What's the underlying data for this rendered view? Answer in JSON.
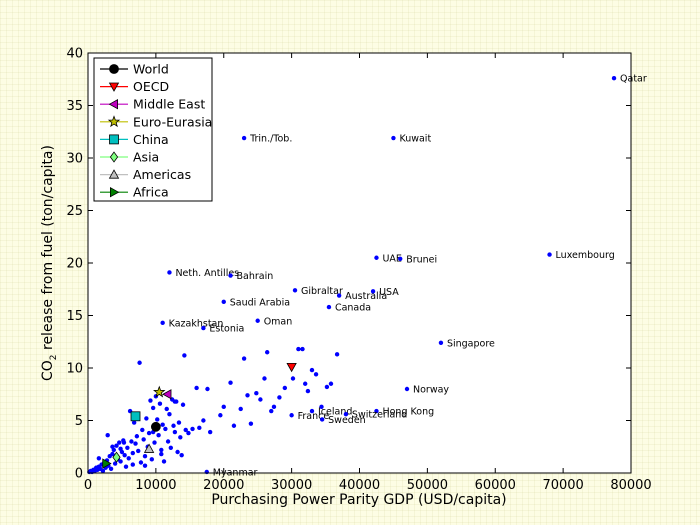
{
  "chart_data": {
    "type": "scatter",
    "title": "",
    "xlabel": "Purchasing Power Parity GDP (USD/capita)",
    "ylabel_main": "CO",
    "ylabel_sub": "2",
    "ylabel_rest": " release from fuel (ton/capita)",
    "xlim": [
      0,
      80000
    ],
    "ylim": [
      0,
      40
    ],
    "xticks": [
      0,
      10000,
      20000,
      30000,
      40000,
      50000,
      60000,
      70000,
      80000
    ],
    "yticks": [
      0,
      5,
      10,
      15,
      20,
      25,
      30,
      35,
      40
    ],
    "grid": false,
    "legend_position": "top-left",
    "colors": {
      "countries": "#0000ff",
      "World": "#000000",
      "OECD": "#ff0000",
      "Middle East": "#bf00bf",
      "Euro-Eurasia": "#bfbf00",
      "China": "#00bfbf",
      "Asia": "#7fff7f",
      "Americas": "#c0c0c0",
      "Africa": "#008000"
    },
    "series": [
      {
        "name": "World",
        "marker": "circle",
        "x": 10000,
        "y": 4.4
      },
      {
        "name": "OECD",
        "marker": "triangle-down",
        "x": 30000,
        "y": 10.1
      },
      {
        "name": "Middle East",
        "marker": "triangle-left",
        "x": 11700,
        "y": 7.5
      },
      {
        "name": "Euro-Eurasia",
        "marker": "star",
        "x": 10500,
        "y": 7.7
      },
      {
        "name": "China",
        "marker": "square",
        "x": 7000,
        "y": 5.4
      },
      {
        "name": "Asia",
        "marker": "diamond",
        "x": 4200,
        "y": 1.5
      },
      {
        "name": "Americas",
        "marker": "triangle-up",
        "x": 9000,
        "y": 2.3
      },
      {
        "name": "Africa",
        "marker": "triangle-right",
        "x": 2700,
        "y": 0.9
      }
    ],
    "labeled_points": [
      {
        "label": "Qatar",
        "x": 77500,
        "y": 37.6
      },
      {
        "label": "Trin./Tob.",
        "x": 23000,
        "y": 31.9
      },
      {
        "label": "Kuwait",
        "x": 45000,
        "y": 31.9
      },
      {
        "label": "Luxembourg",
        "x": 68000,
        "y": 20.8
      },
      {
        "label": "UAE",
        "x": 42500,
        "y": 20.5
      },
      {
        "label": "Brunei",
        "x": 46000,
        "y": 20.4
      },
      {
        "label": "Neth. Antilles",
        "x": 12000,
        "y": 19.1
      },
      {
        "label": "Bahrain",
        "x": 21000,
        "y": 18.8
      },
      {
        "label": "Gibraltar",
        "x": 30500,
        "y": 17.4
      },
      {
        "label": "Australia",
        "x": 37000,
        "y": 16.9
      },
      {
        "label": "USA",
        "x": 42000,
        "y": 17.3
      },
      {
        "label": "Saudi Arabia",
        "x": 20000,
        "y": 16.3
      },
      {
        "label": "Canada",
        "x": 35500,
        "y": 15.8
      },
      {
        "label": "Oman",
        "x": 25000,
        "y": 14.5
      },
      {
        "label": "Kazakhstan",
        "x": 11000,
        "y": 14.3
      },
      {
        "label": "Estonia",
        "x": 17000,
        "y": 13.8
      },
      {
        "label": "Singapore",
        "x": 52000,
        "y": 12.4
      },
      {
        "label": "Norway",
        "x": 47000,
        "y": 8.0
      },
      {
        "label": "Hong Kong",
        "x": 42500,
        "y": 5.9
      },
      {
        "label": "Iceland",
        "x": 33000,
        "y": 5.9
      },
      {
        "label": "Switzerland",
        "x": 38000,
        "y": 5.6
      },
      {
        "label": "France",
        "x": 30000,
        "y": 5.5
      },
      {
        "label": "Sweden",
        "x": 34500,
        "y": 5.1
      },
      {
        "label": "Myanmar",
        "x": 17500,
        "y": 0.1
      }
    ],
    "points": [
      [
        200,
        0.1
      ],
      [
        400,
        0.2
      ],
      [
        600,
        0.1
      ],
      [
        800,
        0.3
      ],
      [
        1000,
        0.2
      ],
      [
        1200,
        0.5
      ],
      [
        1400,
        0.3
      ],
      [
        1600,
        0.6
      ],
      [
        1800,
        0.4
      ],
      [
        2000,
        0.8
      ],
      [
        2200,
        0.2
      ],
      [
        2400,
        1.0
      ],
      [
        2600,
        0.5
      ],
      [
        2800,
        1.2
      ],
      [
        3000,
        0.7
      ],
      [
        3200,
        1.6
      ],
      [
        3400,
        0.4
      ],
      [
        3600,
        1.8
      ],
      [
        3800,
        2.2
      ],
      [
        4000,
        0.9
      ],
      [
        4200,
        2.6
      ],
      [
        4400,
        1.3
      ],
      [
        4600,
        2.9
      ],
      [
        4800,
        1.1
      ],
      [
        5000,
        2.0
      ],
      [
        5200,
        3.1
      ],
      [
        5400,
        1.7
      ],
      [
        5600,
        0.6
      ],
      [
        5800,
        2.4
      ],
      [
        6000,
        1.4
      ],
      [
        6200,
        5.9
      ],
      [
        6400,
        3.0
      ],
      [
        6600,
        1.9
      ],
      [
        6800,
        4.8
      ],
      [
        7000,
        2.8
      ],
      [
        7200,
        3.5
      ],
      [
        7400,
        2.1
      ],
      [
        7600,
        10.5
      ],
      [
        7800,
        1.0
      ],
      [
        8000,
        4.1
      ],
      [
        8200,
        3.2
      ],
      [
        8400,
        1.6
      ],
      [
        8600,
        5.2
      ],
      [
        8800,
        2.5
      ],
      [
        9000,
        3.8
      ],
      [
        9200,
        6.9
      ],
      [
        9400,
        1.3
      ],
      [
        9600,
        6.2
      ],
      [
        9800,
        2.9
      ],
      [
        10000,
        7.3
      ],
      [
        10200,
        5.1
      ],
      [
        10400,
        3.6
      ],
      [
        10600,
        6.6
      ],
      [
        10800,
        2.2
      ],
      [
        11000,
        4.6
      ],
      [
        11200,
        1.1
      ],
      [
        11400,
        4.2
      ],
      [
        11600,
        6.1
      ],
      [
        11800,
        3.0
      ],
      [
        12000,
        5.6
      ],
      [
        12200,
        2.4
      ],
      [
        12400,
        7.0
      ],
      [
        12600,
        4.5
      ],
      [
        12800,
        3.9
      ],
      [
        13000,
        6.8
      ],
      [
        13200,
        2.0
      ],
      [
        13400,
        4.8
      ],
      [
        13600,
        3.4
      ],
      [
        13800,
        1.7
      ],
      [
        14000,
        6.5
      ],
      [
        14200,
        11.2
      ],
      [
        14400,
        4.1
      ],
      [
        14800,
        3.8
      ],
      [
        15400,
        4.2
      ],
      [
        16000,
        8.1
      ],
      [
        16400,
        4.3
      ],
      [
        17000,
        5.0
      ],
      [
        17600,
        8.0
      ],
      [
        18000,
        3.9
      ],
      [
        19500,
        5.5
      ],
      [
        20000,
        6.3
      ],
      [
        21000,
        8.6
      ],
      [
        21500,
        4.5
      ],
      [
        22500,
        6.1
      ],
      [
        23000,
        10.9
      ],
      [
        23500,
        7.4
      ],
      [
        24000,
        4.7
      ],
      [
        24800,
        7.6
      ],
      [
        25400,
        7.0
      ],
      [
        26000,
        9.0
      ],
      [
        26400,
        11.5
      ],
      [
        27000,
        5.9
      ],
      [
        27400,
        6.3
      ],
      [
        28200,
        7.2
      ],
      [
        29000,
        8.1
      ],
      [
        30200,
        9.0
      ],
      [
        31000,
        11.8
      ],
      [
        31600,
        11.8
      ],
      [
        32000,
        8.5
      ],
      [
        32400,
        7.8
      ],
      [
        33000,
        9.8
      ],
      [
        33600,
        9.4
      ],
      [
        34400,
        6.3
      ],
      [
        35200,
        8.2
      ],
      [
        35800,
        8.5
      ],
      [
        36700,
        11.3
      ],
      [
        1600,
        1.4
      ],
      [
        2900,
        3.6
      ],
      [
        3600,
        2.5
      ],
      [
        4800,
        2.3
      ],
      [
        5300,
        2.9
      ],
      [
        6600,
        0.8
      ],
      [
        8400,
        0.7
      ],
      [
        9600,
        3.9
      ],
      [
        10800,
        1.8
      ],
      [
        12800,
        6.8
      ]
    ]
  }
}
